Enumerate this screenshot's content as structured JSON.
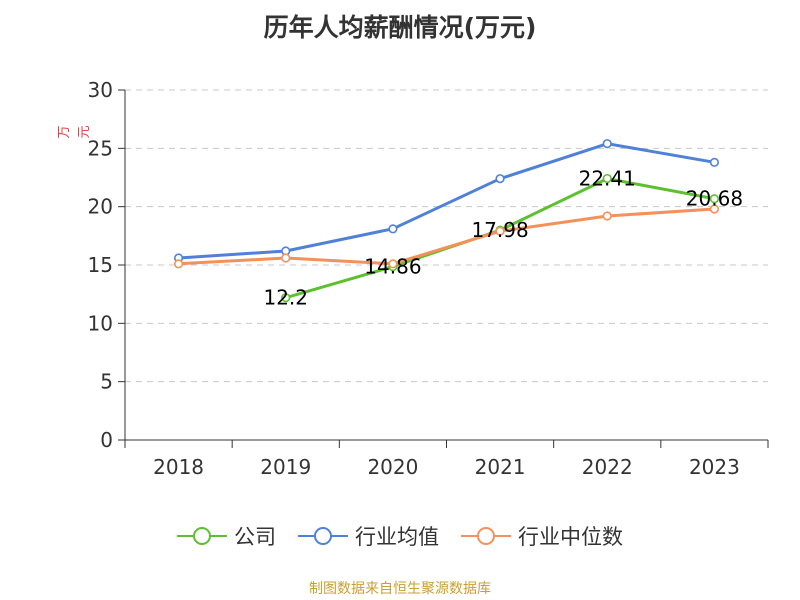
{
  "chart_data": {
    "type": "line",
    "title": "历年人均薪酬情况(万元)",
    "ylabel": "万元",
    "categories": [
      "2018",
      "2019",
      "2020",
      "2021",
      "2022",
      "2023"
    ],
    "ylim": [
      0,
      30
    ],
    "yticks": [
      0,
      5,
      10,
      15,
      20,
      25,
      30
    ],
    "grid": true,
    "legend_position": "bottom",
    "series": [
      {
        "name": "公司",
        "color": "#5cc02f",
        "values": [
          null,
          12.2,
          14.86,
          17.98,
          22.41,
          20.68
        ],
        "labels": [
          null,
          "12.2",
          "14.86",
          "17.98",
          "22.41",
          "20.68"
        ]
      },
      {
        "name": "行业均值",
        "color": "#4f81d8",
        "values": [
          15.6,
          16.2,
          18.1,
          22.4,
          25.4,
          23.8
        ]
      },
      {
        "name": "行业中位数",
        "color": "#f4915a",
        "values": [
          15.1,
          15.6,
          15.1,
          17.9,
          19.2,
          19.8
        ]
      }
    ]
  },
  "source": "制图数据来自恒生聚源数据库"
}
